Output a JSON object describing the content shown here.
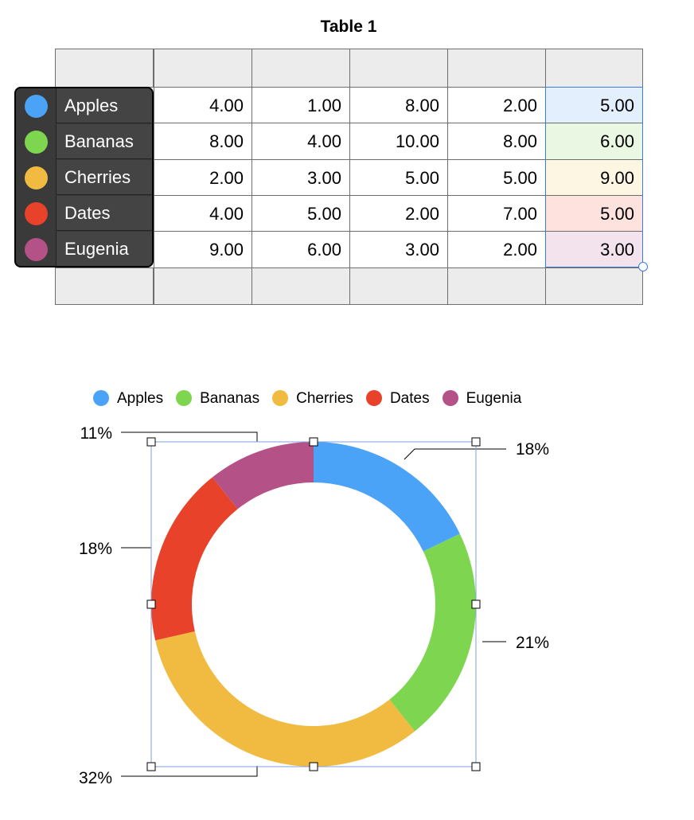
{
  "table": {
    "title": "Table 1",
    "rows": [
      {
        "name": "Apples",
        "color": "#4aa3f7",
        "values": [
          "4.00",
          "1.00",
          "8.00",
          "2.00",
          "5.00"
        ]
      },
      {
        "name": "Bananas",
        "color": "#7ed650",
        "values": [
          "8.00",
          "4.00",
          "10.00",
          "8.00",
          "6.00"
        ]
      },
      {
        "name": "Cherries",
        "color": "#f0bb40",
        "values": [
          "2.00",
          "3.00",
          "5.00",
          "5.00",
          "9.00"
        ]
      },
      {
        "name": "Dates",
        "color": "#e8422a",
        "values": [
          "4.00",
          "5.00",
          "2.00",
          "7.00",
          "5.00"
        ]
      },
      {
        "name": "Eugenia",
        "color": "#b45186",
        "values": [
          "9.00",
          "6.00",
          "3.00",
          "2.00",
          "3.00"
        ]
      }
    ],
    "selected_column_tints": [
      "#e3effc",
      "#eaf7e3",
      "#fdf6e2",
      "#fde2de",
      "#f2e3ec"
    ]
  },
  "chart_data": {
    "type": "pie",
    "style": "donut",
    "categories": [
      "Apples",
      "Bananas",
      "Cherries",
      "Dates",
      "Eugenia"
    ],
    "values": [
      5,
      6,
      9,
      5,
      3
    ],
    "labels": [
      "18%",
      "21%",
      "32%",
      "18%",
      "11%"
    ],
    "colors": [
      "#4aa3f7",
      "#7ed650",
      "#f0bb40",
      "#e8422a",
      "#b45186"
    ],
    "legend": "top"
  }
}
